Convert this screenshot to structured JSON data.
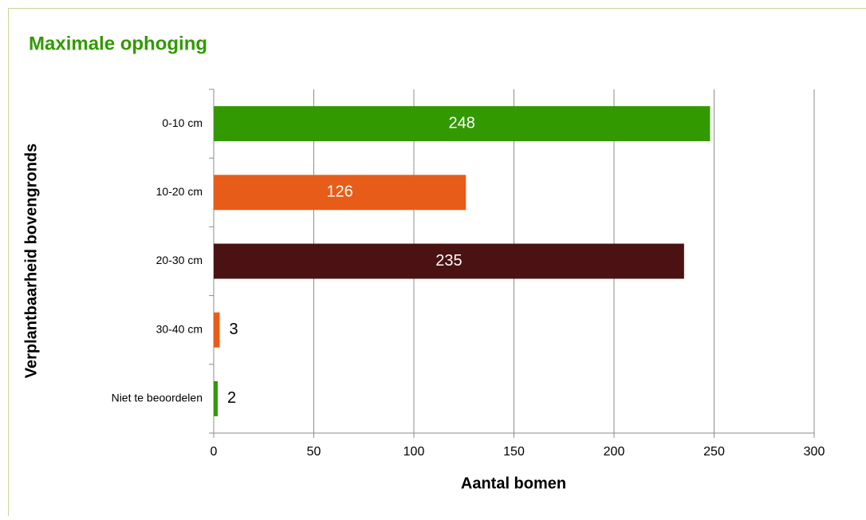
{
  "chart_data": {
    "type": "bar",
    "orientation": "horizontal",
    "title": "Maximale ophoging",
    "x_label": "Aantal bomen",
    "y_label": "Verplantbaarheid bovengronds",
    "categories": [
      "0-10 cm",
      "10-20 cm",
      "20-30 cm",
      "30-40 cm",
      "Niet te beoordelen"
    ],
    "values": [
      248,
      126,
      235,
      3,
      2
    ],
    "colors": [
      "#339900",
      "#e85c1a",
      "#4a1212",
      "#e85c1a",
      "#339900"
    ],
    "xlim": [
      0,
      300
    ],
    "xticks": [
      0,
      50,
      100,
      150,
      200,
      250,
      300
    ],
    "grid": true
  }
}
